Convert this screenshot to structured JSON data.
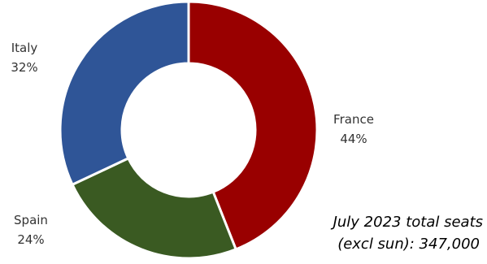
{
  "chart_data": {
    "type": "pie",
    "donut": true,
    "legend": "none",
    "slices": [
      {
        "label": "France",
        "value": 44,
        "value_label": "44%",
        "color": "#990000"
      },
      {
        "label": "Spain",
        "value": 24,
        "value_label": "24%",
        "color": "#3a5a22"
      },
      {
        "label": "Italy",
        "value": 32,
        "value_label": "32%",
        "color": "#2f5597"
      }
    ],
    "annotation": {
      "line1": "July 2023 total seats",
      "line2": "(excl sun):  347,000"
    }
  }
}
